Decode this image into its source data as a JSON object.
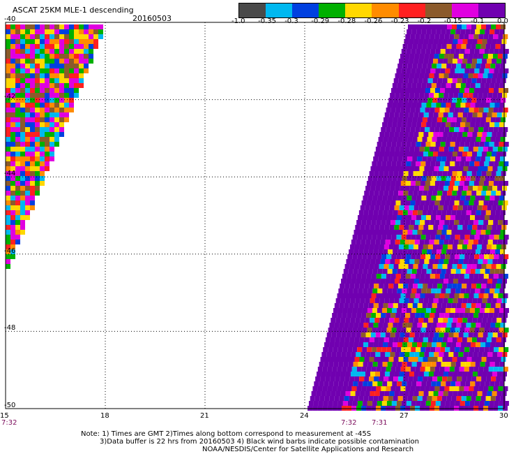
{
  "title": {
    "product": "ASCAT 25KM MLE-1 descending",
    "date": "20160503"
  },
  "colorbar": {
    "colors": [
      "#4a4a4a",
      "#00b8f0",
      "#0040e0",
      "#00b000",
      "#ffd800",
      "#ff8c00",
      "#ff2020",
      "#8b5a2b",
      "#e000e0",
      "#7000b0"
    ],
    "ticks": [
      "-1.0",
      "-0.35",
      "-0.3",
      "-0.29",
      "-0.28",
      "-0.26",
      "-0.23",
      "-0.2",
      "-0.15",
      "-0.1",
      "0.0"
    ]
  },
  "axes": {
    "y_ticks": [
      "-40",
      "-42",
      "-44",
      "-46",
      "-48",
      "-50"
    ],
    "x_ticks": [
      "15",
      "18",
      "21",
      "24",
      "27",
      "30"
    ]
  },
  "pass_times": {
    "left": "7:32",
    "right_a": "7:32",
    "right_b": "7:31"
  },
  "notes": {
    "line1": "Note: 1) Times are GMT 2)Times along bottom correspond to measurement at -45S",
    "line2": "3)Data buffer is 22 hrs from 20160503 4) Black wind barbs indicate possible contamination",
    "line3": "NOAA/NESDIS/Center for Satellite Applications and Research"
  }
}
